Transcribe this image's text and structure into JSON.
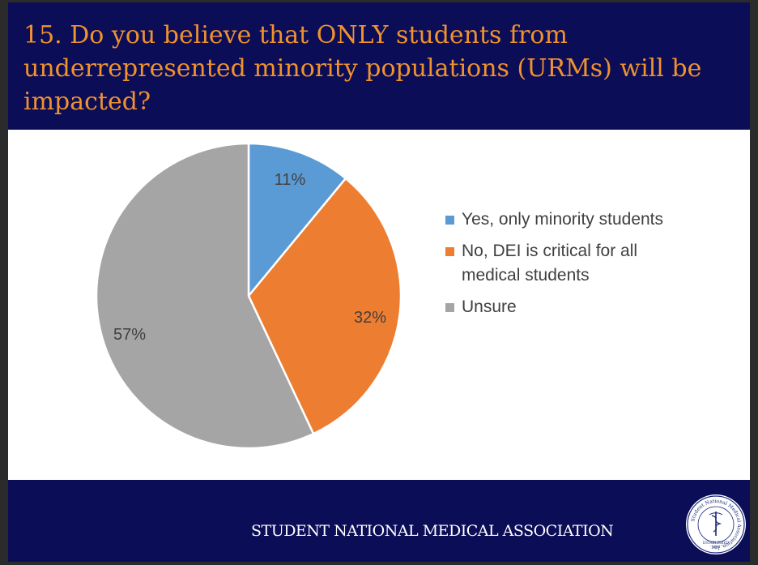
{
  "slide": {
    "title": "15. Do you believe that ONLY students from underrepresented minority populations (URMs) will be impacted?",
    "footer_org": "STUDENT  NATIONAL MEDICAL ASSOCIATION",
    "seal": {
      "icon": "caduceus-seal-icon",
      "ring_text": "Student National Medical Association, Inc.",
      "established": "ESTABLISHED",
      "year": "1964"
    }
  },
  "colors": {
    "header_bg": "#0b0d57",
    "title_text": "#f0922e",
    "slice_yes": "#5b9bd5",
    "slice_no": "#ed7d31",
    "slice_unsure": "#a5a5a5"
  },
  "chart_data": {
    "type": "pie",
    "categories": [
      "Yes, only minority students",
      "No, DEI is critical for all medical students",
      "Unsure"
    ],
    "values": [
      11,
      32,
      57
    ],
    "labels": [
      "11%",
      "32%",
      "57%"
    ],
    "colors": [
      "#5b9bd5",
      "#ed7d31",
      "#a5a5a5"
    ],
    "start_angle": "12 o'clock",
    "direction": "clockwise",
    "legend_position": "right"
  }
}
